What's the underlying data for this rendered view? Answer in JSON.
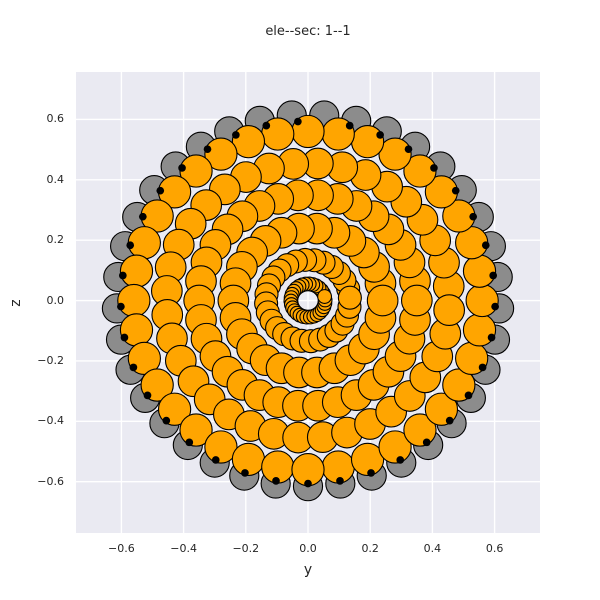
{
  "title": "ele--sec: 1--1",
  "axes": {
    "xlabel": "y",
    "ylabel": "z",
    "xlim": [
      -0.746,
      0.746
    ],
    "ylim": [
      -0.77,
      0.757
    ],
    "x_tick_values": [
      -0.6,
      -0.4,
      -0.2,
      0.0,
      0.2,
      0.4,
      0.6
    ],
    "x_tick_labels": [
      "−0.6",
      "−0.4",
      "−0.2",
      "0.0",
      "0.2",
      "0.4",
      "0.6"
    ],
    "y_tick_values": [
      -0.6,
      -0.4,
      -0.2,
      0.0,
      0.2,
      0.4,
      0.6
    ],
    "y_tick_labels": [
      "−0.6",
      "−0.4",
      "−0.2",
      "0.0",
      "0.2",
      "0.4",
      "0.6"
    ],
    "grid": true,
    "legend": "none"
  },
  "chart_data": {
    "type": "scatter",
    "description": "Cross-section of stranded conductor element 1, section 1: six concentric layers of round orange wires around the origin, one outer layer of gray wires drawn behind, and black dots marking each outer orange wire at its contact point with the nearest gray wire.",
    "center": [
      0.0,
      0.0
    ],
    "style": {
      "plot_bg": "#EAEAF2",
      "grid_color": "#FFFFFF",
      "wire_fill": "#FFA500",
      "outer_fill": "#8C8C8C",
      "edge_color": "#000000",
      "dot_color": "#000000",
      "text_color": "#262626"
    },
    "rings": [
      {
        "name": "outer-gray-layer",
        "count": 37,
        "ring_radius": 0.615,
        "wire_radius": 0.0475,
        "color_key": "outer_fill",
        "seam_deg": 270,
        "has_dots": false
      },
      {
        "name": "layer-1-core",
        "count": 30,
        "ring_radius": 0.055,
        "wire_radius": 0.0225,
        "color_key": "wire_fill",
        "seam_deg": 14,
        "has_dots": false
      },
      {
        "name": "layer-2",
        "count": 28,
        "ring_radius": 0.135,
        "wire_radius": 0.0375,
        "color_key": "wire_fill",
        "seam_deg": 4,
        "has_dots": false
      },
      {
        "name": "layer-3",
        "count": 26,
        "ring_radius": 0.24,
        "wire_radius": 0.05,
        "color_key": "wire_fill",
        "seam_deg": 0,
        "has_dots": false
      },
      {
        "name": "layer-4",
        "count": 34,
        "ring_radius": 0.35,
        "wire_radius": 0.05,
        "color_key": "wire_fill",
        "seam_deg": 0,
        "has_dots": false
      },
      {
        "name": "layer-5",
        "count": 36,
        "ring_radius": 0.455,
        "wire_radius": 0.05,
        "color_key": "wire_fill",
        "seam_deg": 356,
        "has_dots": false
      },
      {
        "name": "layer-6-outer",
        "count": 36,
        "ring_radius": 0.56,
        "wire_radius": 0.0525,
        "color_key": "wire_fill",
        "seam_deg": 270,
        "has_dots": true
      }
    ],
    "dots": {
      "dot_radius": 0.0125,
      "edge_factor": 0.88,
      "color_key": "dot_color",
      "placement": "toward nearest gray wire center"
    }
  }
}
